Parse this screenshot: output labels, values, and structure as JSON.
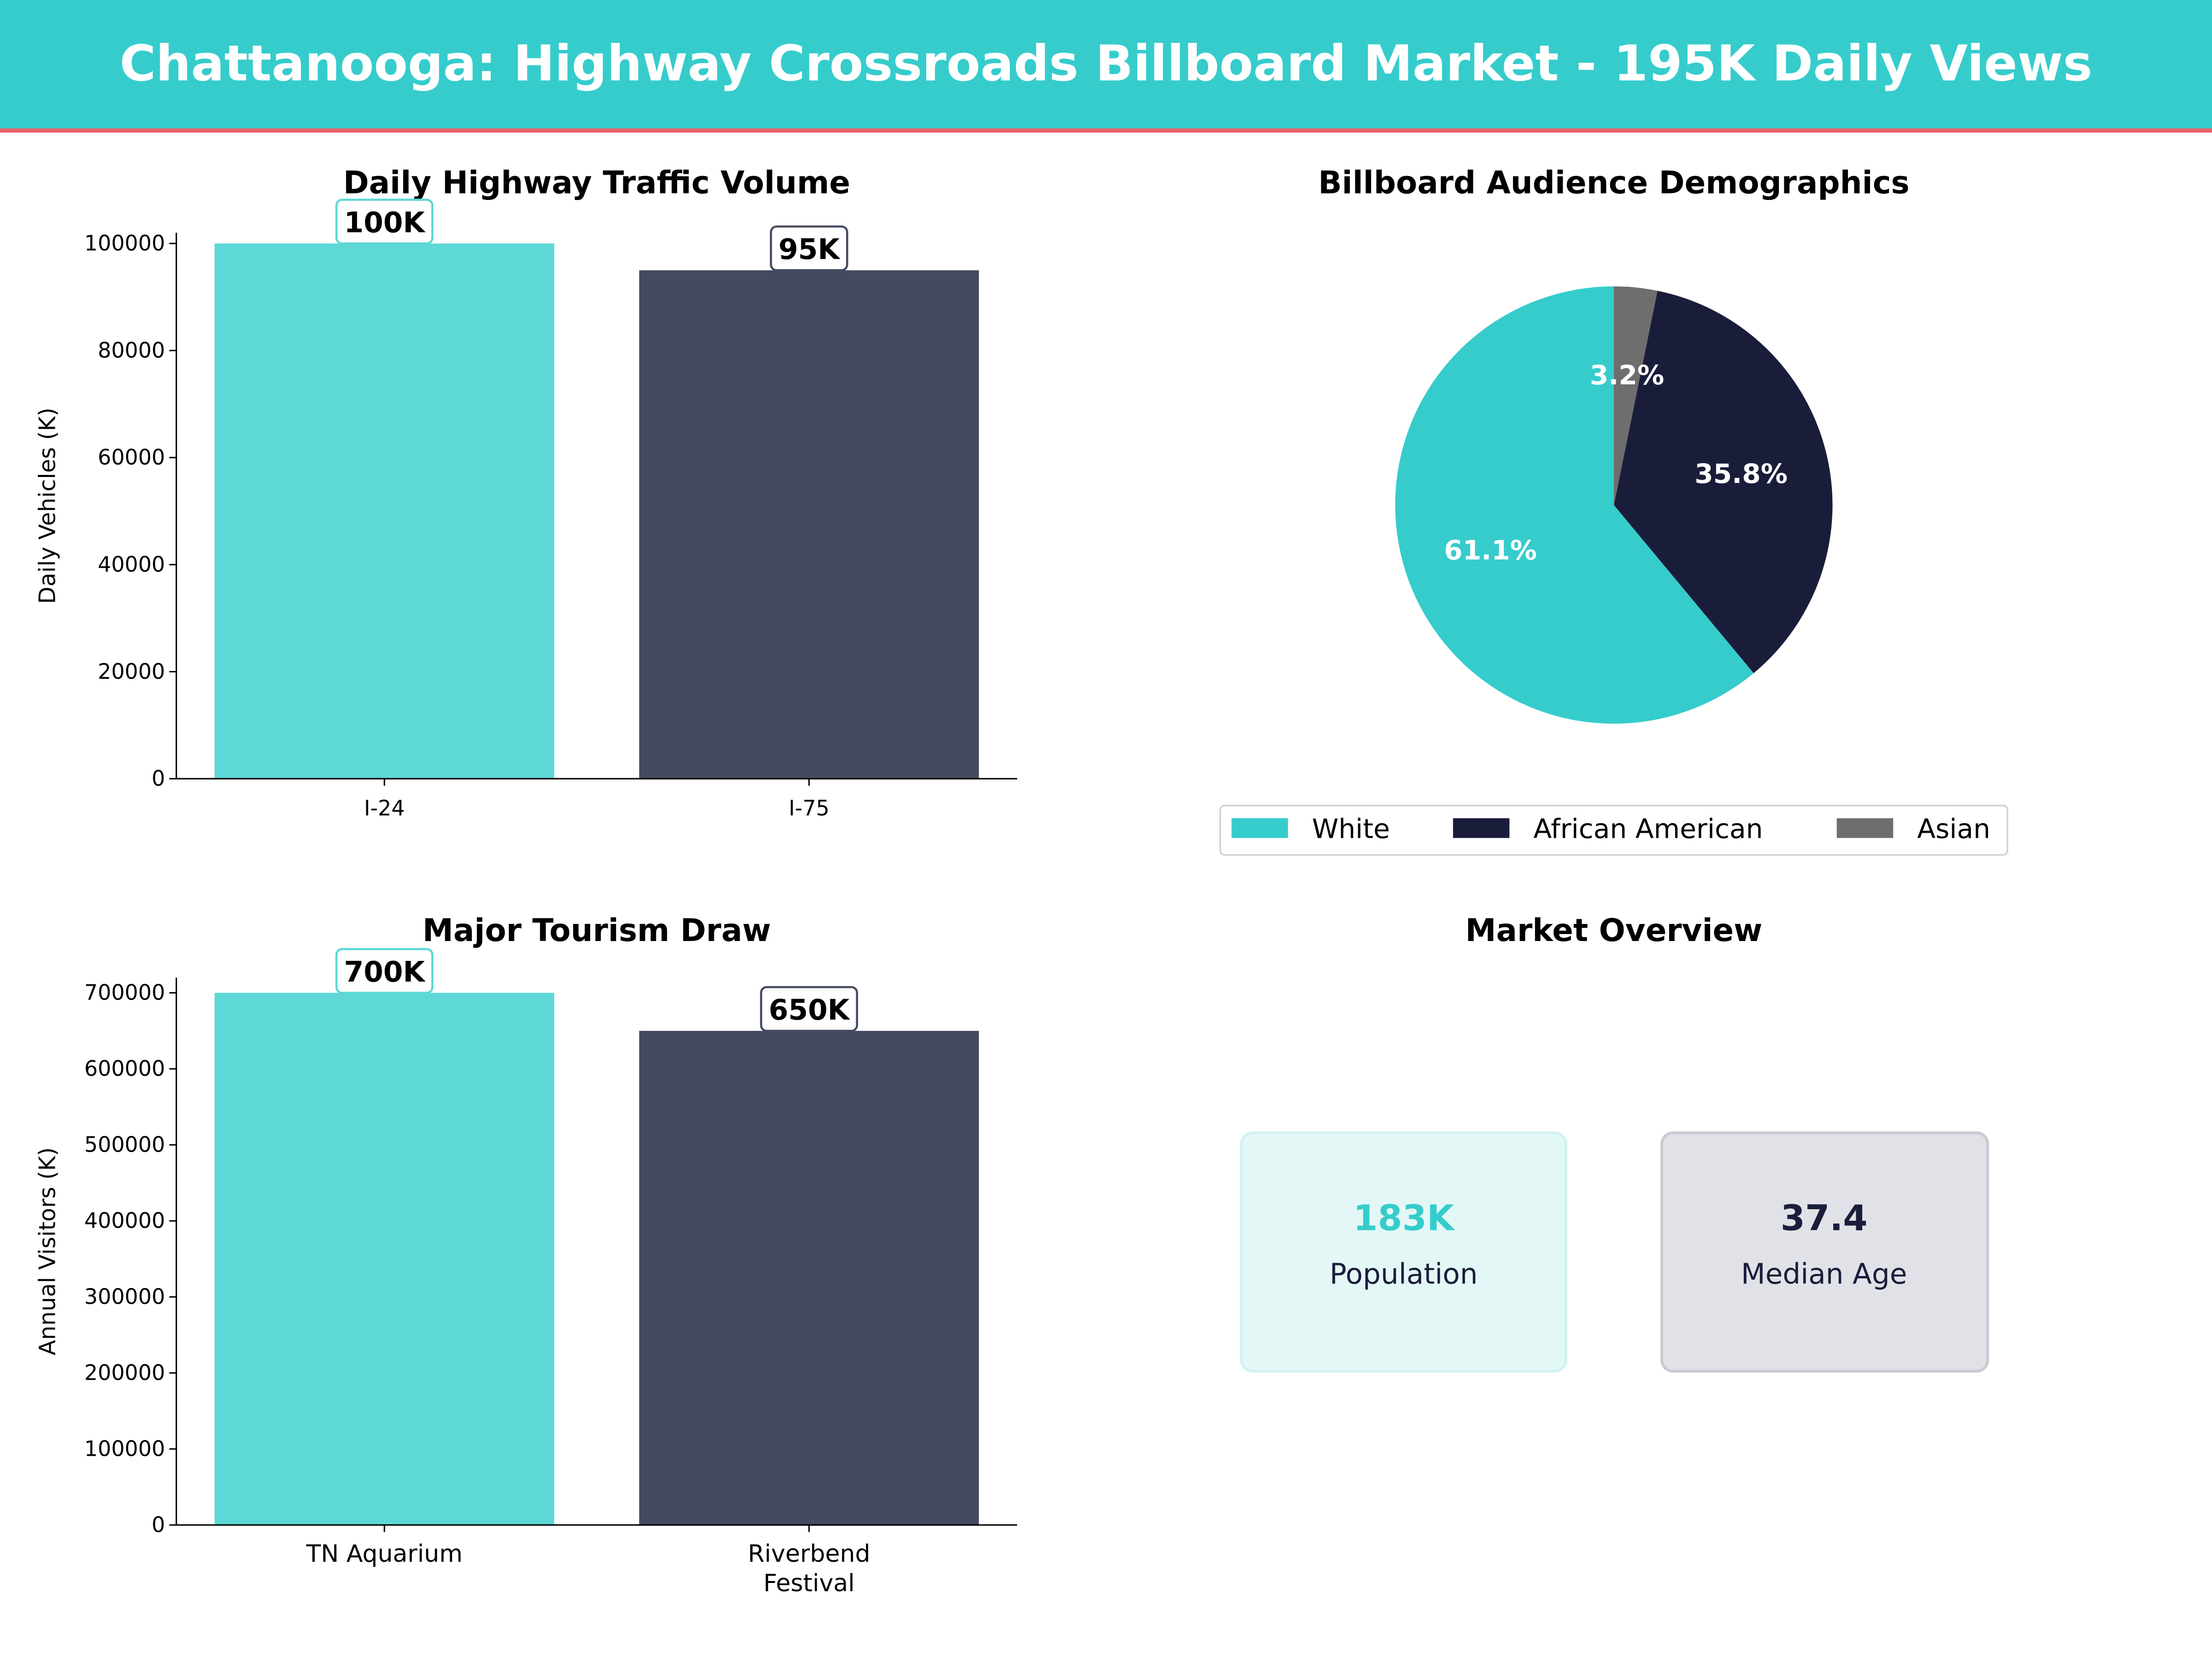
{
  "header": {
    "title": "Chattanooga: Highway Crossroads Billboard Market - 195K Daily Views",
    "bg_color": "#36CCCC",
    "accent_line_color": "#E8606A"
  },
  "chart_data": [
    {
      "type": "bar",
      "title": "Daily Highway Traffic Volume",
      "xlabel": "",
      "ylabel": "Daily Vehicles (K)",
      "categories": [
        "I-24",
        "I-75"
      ],
      "values": [
        100000,
        95000
      ],
      "data_labels": [
        "100K",
        "95K"
      ],
      "colors": [
        "#5DD8D6",
        "#454A60"
      ],
      "ylim": [
        0,
        102000
      ],
      "yticks": [
        0,
        20000,
        40000,
        60000,
        80000,
        100000
      ],
      "grid": false
    },
    {
      "type": "pie",
      "title": "Billboard Audience Demographics",
      "labels": [
        "White",
        "African American",
        "Asian"
      ],
      "values": [
        61.1,
        35.8,
        3.2
      ],
      "data_labels": [
        "61.1%",
        "35.8%",
        "3.2%"
      ],
      "colors": [
        "#36CCCC",
        "#1A1D3A",
        "#6E6E6E"
      ],
      "legend_placement": "bottom"
    },
    {
      "type": "bar",
      "title": "Major Tourism Draw",
      "xlabel": "",
      "ylabel": "Annual Visitors (K)",
      "categories": [
        "TN Aquarium",
        "Riverbend\nFestival"
      ],
      "values": [
        700000,
        650000
      ],
      "data_labels": [
        "700K",
        "650K"
      ],
      "colors": [
        "#5DD8D6",
        "#454A60"
      ],
      "ylim": [
        0,
        720000
      ],
      "yticks": [
        0,
        100000,
        200000,
        300000,
        400000,
        500000,
        600000,
        700000
      ],
      "grid": false
    }
  ],
  "overview": {
    "title": "Market Overview",
    "cards": [
      {
        "value": "183K",
        "label": "Population",
        "value_color": "#36CCCC",
        "bg": "#E4F7F7",
        "border": "#D2F2F2"
      },
      {
        "value": "37.4",
        "label": "Median Age",
        "value_color": "#1A1D3A",
        "bg": "#E1E2E7",
        "border": "#CACBD2"
      }
    ]
  }
}
